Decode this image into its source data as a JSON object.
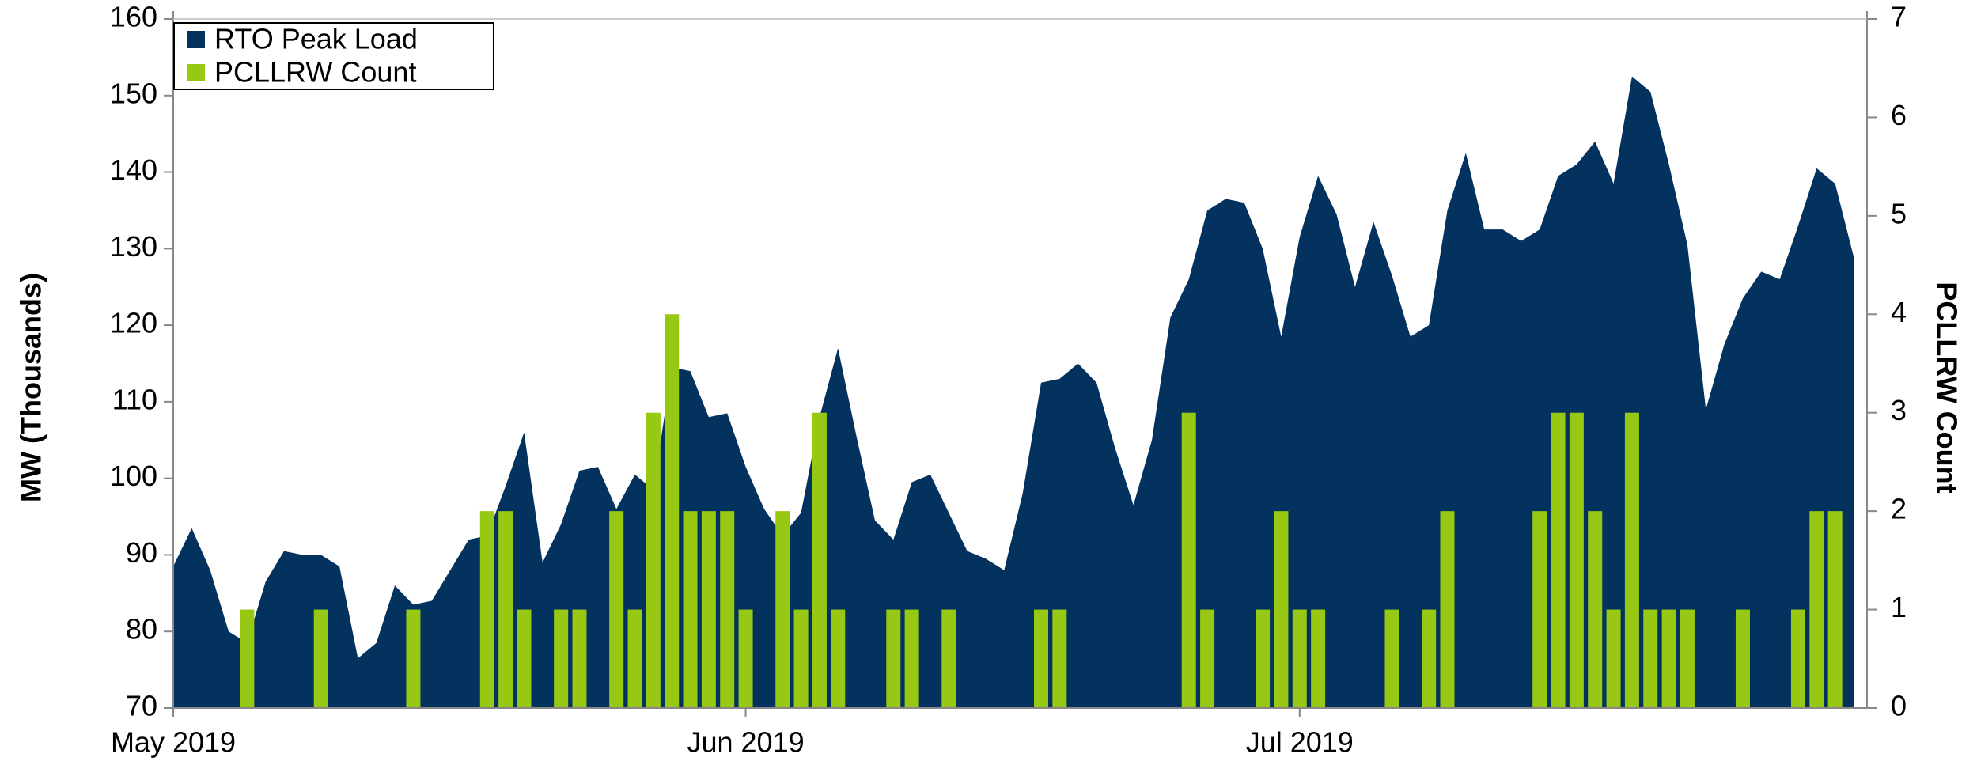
{
  "chart_data": {
    "type": "area_bar",
    "categories": [
      "May 2019",
      null,
      null,
      null,
      null,
      null,
      null,
      null,
      null,
      null,
      null,
      null,
      null,
      null,
      null,
      null,
      null,
      null,
      null,
      null,
      null,
      null,
      null,
      null,
      null,
      null,
      null,
      null,
      null,
      null,
      null,
      "Jun 2019",
      null,
      null,
      null,
      null,
      null,
      null,
      null,
      null,
      null,
      null,
      null,
      null,
      null,
      null,
      null,
      null,
      null,
      null,
      null,
      null,
      null,
      null,
      null,
      null,
      null,
      null,
      null,
      null,
      null,
      "Jul 2019",
      null,
      null,
      null,
      null,
      null,
      null,
      null,
      null,
      null,
      null,
      null,
      null,
      null,
      null,
      null,
      null,
      null,
      null,
      null,
      null,
      null,
      null,
      null,
      null,
      null,
      null,
      null,
      null,
      null,
      null
    ],
    "series": [
      {
        "name": "RTO Peak Load",
        "color": "#04325f",
        "axis": "y",
        "values": [
          88.5,
          93.5,
          88,
          80,
          78.5,
          86.5,
          90.5,
          90,
          90,
          88.5,
          76.5,
          78.5,
          86,
          83.5,
          84,
          88,
          92,
          92.5,
          99,
          106,
          89,
          94,
          101,
          101.5,
          96,
          100.5,
          98.5,
          114.5,
          114,
          108,
          108.5,
          101.5,
          96,
          92.5,
          95.5,
          108,
          117,
          105.5,
          94.5,
          92,
          99.5,
          100.5,
          95.5,
          90.5,
          89.5,
          88,
          98,
          112.5,
          113,
          115,
          112.5,
          104,
          96.5,
          105,
          121,
          126,
          135,
          136.5,
          136,
          130,
          118.5,
          131.5,
          139.5,
          134.5,
          125,
          133.5,
          126.5,
          118.5,
          120,
          135,
          142.5,
          132.5,
          132.5,
          131,
          132.5,
          139.5,
          141,
          144,
          138.5,
          152.5,
          150.5,
          141,
          130.5,
          109,
          117.5,
          123.5,
          127,
          126,
          133,
          140.5,
          138.5,
          129
        ]
      },
      {
        "name": "PCLLRW Count",
        "color": "#96c814",
        "axis": "y2",
        "values": [
          0,
          0,
          0,
          0,
          1,
          0,
          0,
          0,
          1,
          0,
          0,
          0,
          0,
          1,
          0,
          0,
          0,
          2,
          2,
          1,
          0,
          1,
          1,
          0,
          2,
          1,
          3,
          4,
          2,
          2,
          2,
          1,
          0,
          2,
          1,
          3,
          1,
          0,
          0,
          1,
          1,
          0,
          1,
          0,
          0,
          0,
          0,
          1,
          1,
          0,
          0,
          0,
          0,
          0,
          0,
          3,
          1,
          0,
          0,
          1,
          2,
          1,
          1,
          0,
          0,
          0,
          1,
          0,
          1,
          2,
          0,
          0,
          0,
          0,
          2,
          3,
          3,
          2,
          1,
          3,
          1,
          1,
          1,
          0,
          0,
          1,
          0,
          0,
          1,
          2,
          2,
          0
        ]
      }
    ],
    "ylabel": "MW (Thousands)",
    "y2label": "PCLLRW Count",
    "ylim": [
      70,
      160
    ],
    "yticks": [
      70,
      80,
      90,
      100,
      110,
      120,
      130,
      140,
      150,
      160
    ],
    "y2lim": [
      0,
      7
    ],
    "y2ticks": [
      0,
      1,
      2,
      3,
      4,
      5,
      6,
      7
    ],
    "legend": "upper left",
    "grid": false
  }
}
